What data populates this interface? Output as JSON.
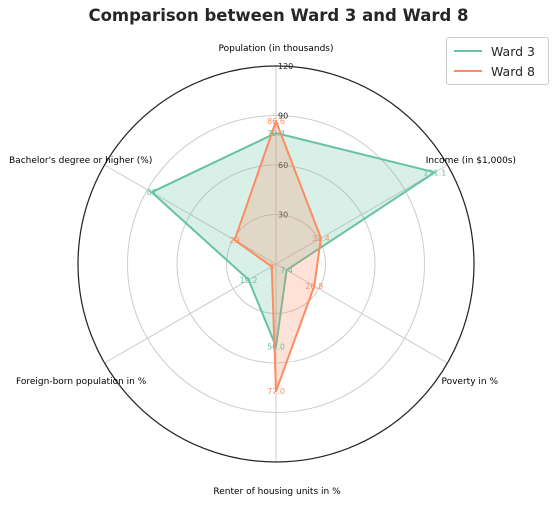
{
  "chart_data": {
    "type": "radar",
    "title": "Comparison between Ward 3 and Ward 8",
    "axes": [
      "Population (in thousands)",
      "Income (in $1,000s)",
      "Poverty in %",
      "Renter of housing units in %",
      "Foreign-born population in %",
      "Bachelor's degree or higher (%)"
    ],
    "rticks": [
      30,
      60,
      90,
      120
    ],
    "rmax": 120,
    "grid": true,
    "legend_position": "top-right",
    "series": [
      {
        "name": "Ward 3",
        "values": [
          79.4,
          111.1,
          7.4,
          50.0,
          19.2,
          87
        ],
        "labels": [
          "79.4",
          "111.1",
          "7.4",
          "50.0",
          "19.2",
          "87"
        ],
        "color": "#66c2a5"
      },
      {
        "name": "Ward 8",
        "values": [
          86.6,
          31.4,
          26.8,
          77.0,
          3.0,
          29
        ],
        "labels": [
          "86.6",
          "31.4",
          "26.8",
          "77.0",
          "3",
          "29"
        ],
        "color": "#fc8d62"
      }
    ]
  }
}
